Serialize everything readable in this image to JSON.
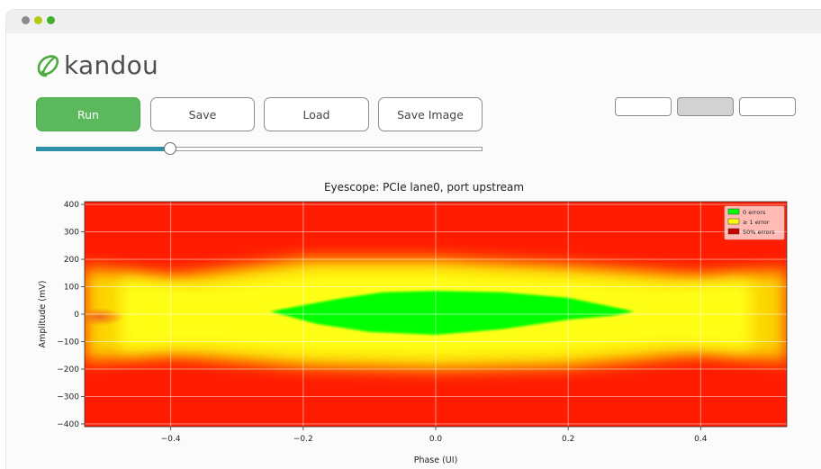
{
  "window": {
    "controls": [
      "close",
      "minimize",
      "maximize"
    ]
  },
  "logo": {
    "text": "kandou",
    "icon": "kandou-logo-icon",
    "color": "#4f4f4f",
    "icon_color": "#4caa3e"
  },
  "toolbar": {
    "run_label": "Run",
    "save_label": "Save",
    "load_label": "Load",
    "save_image_label": "Save Image",
    "toggle_buttons": [
      {
        "active": false
      },
      {
        "active": true
      },
      {
        "active": false
      }
    ]
  },
  "slider": {
    "value": 0.3
  },
  "colors": {
    "accent": "#5cb85c",
    "slider_fill": "#2f8fa7",
    "zero_errors": "#00ff00",
    "one_error": "#ffff00",
    "fifty_pct_errors": "#ff0000"
  },
  "chart_data": {
    "type": "heatmap",
    "title": "Eyescope: PCIe lane0, port upstream",
    "xlabel": "Phase (UI)",
    "ylabel": "Amplitude (mV)",
    "xlim": [
      -0.53,
      0.53
    ],
    "ylim": [
      -410,
      410
    ],
    "xticks": [
      -0.4,
      -0.2,
      0.0,
      0.2,
      0.4
    ],
    "xtick_labels": [
      "−0.4",
      "−0.2",
      "0.0",
      "0.2",
      "0.4"
    ],
    "yticks": [
      400,
      300,
      200,
      100,
      0,
      -100,
      -200,
      -300,
      -400
    ],
    "ytick_labels": [
      "400",
      "300",
      "200",
      "100",
      "0",
      "−100",
      "−200",
      "−300",
      "−400"
    ],
    "grid": true,
    "legend": {
      "position": "top-right",
      "entries": [
        {
          "label": "0 errors",
          "color": "#00ff00"
        },
        {
          "label": "≥ 1 error",
          "color": "#ffff00"
        },
        {
          "label": "50% errors",
          "color": "#cc0000"
        }
      ]
    },
    "regions": {
      "fifty_pct_errors": "background",
      "one_error_boundary": [
        [
          -0.53,
          170
        ],
        [
          -0.4,
          135
        ],
        [
          -0.2,
          200
        ],
        [
          0.0,
          200
        ],
        [
          0.2,
          175
        ],
        [
          0.4,
          140
        ],
        [
          0.53,
          160
        ],
        [
          0.53,
          -170
        ],
        [
          0.4,
          -145
        ],
        [
          0.2,
          -190
        ],
        [
          0.0,
          -200
        ],
        [
          -0.2,
          -190
        ],
        [
          -0.4,
          -150
        ],
        [
          -0.53,
          -170
        ]
      ],
      "zero_errors_boundary": [
        [
          -0.25,
          10
        ],
        [
          -0.15,
          55
        ],
        [
          -0.08,
          80
        ],
        [
          0.0,
          85
        ],
        [
          0.1,
          80
        ],
        [
          0.2,
          60
        ],
        [
          0.27,
          25
        ],
        [
          0.3,
          10
        ],
        [
          0.27,
          -5
        ],
        [
          0.2,
          -20
        ],
        [
          0.1,
          -55
        ],
        [
          0.0,
          -75
        ],
        [
          -0.1,
          -65
        ],
        [
          -0.18,
          -35
        ]
      ]
    }
  }
}
